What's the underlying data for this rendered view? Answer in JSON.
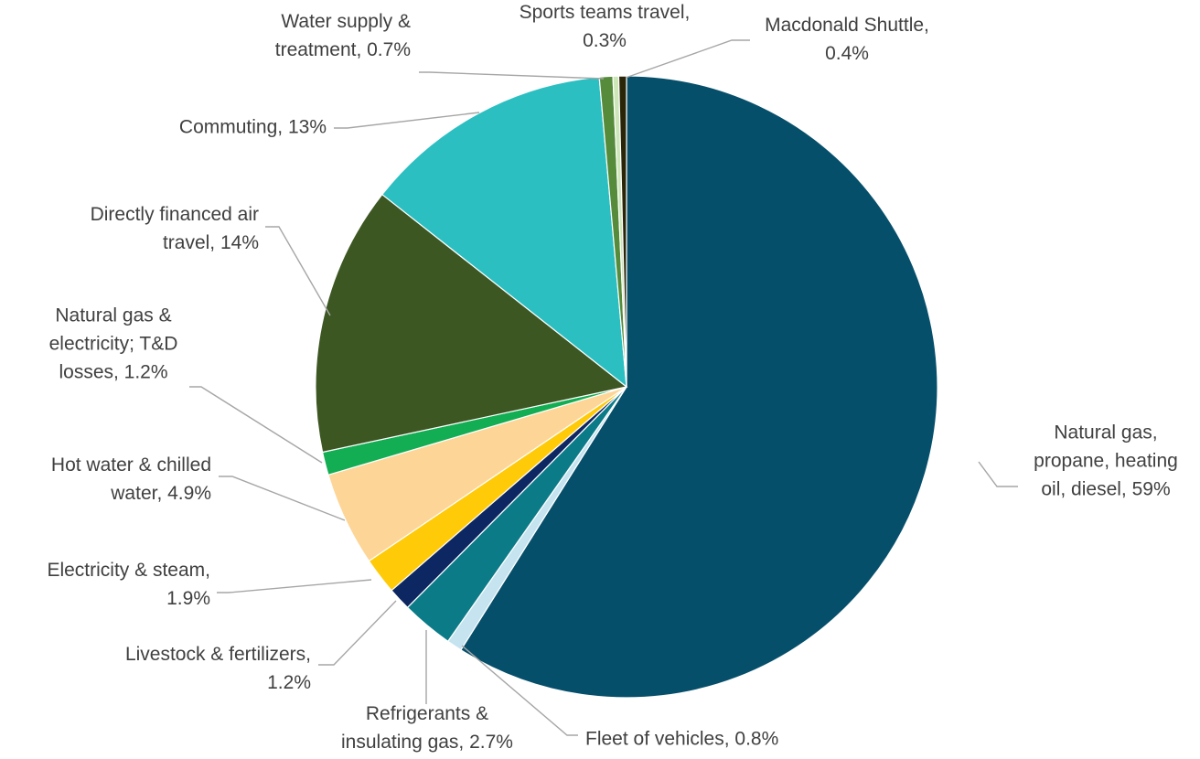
{
  "chart_data": {
    "type": "pie",
    "unit": "%",
    "slices": [
      {
        "label": "Natural gas, propane, heating oil, diesel",
        "display_lines": [
          "Natural gas,",
          "propane, heating",
          "oil, diesel, 59%"
        ],
        "value": 59,
        "color": "#064F6B"
      },
      {
        "label": "Fleet of vehicles",
        "display_lines": [
          "Fleet of vehicles, 0.8%"
        ],
        "value": 0.8,
        "color": "#C5E4EF"
      },
      {
        "label": "Refrigerants & insulating gas",
        "display_lines": [
          "Refrigerants &",
          "insulating gas, 2.7%"
        ],
        "value": 2.7,
        "color": "#0B7B88"
      },
      {
        "label": "Livestock & fertilizers",
        "display_lines": [
          "Livestock & fertilizers,",
          "1.2%"
        ],
        "value": 1.2,
        "color": "#0D2762"
      },
      {
        "label": "Electricity & steam",
        "display_lines": [
          "Electricity & steam,",
          "1.9%"
        ],
        "value": 1.9,
        "color": "#FFCA08"
      },
      {
        "label": "Hot water & chilled water",
        "display_lines": [
          "Hot water & chilled",
          "water, 4.9%"
        ],
        "value": 4.9,
        "color": "#FDD597"
      },
      {
        "label": "Natural gas & electricity; T&D losses",
        "display_lines": [
          "Natural gas &",
          "electricity; T&D",
          "losses, 1.2%"
        ],
        "value": 1.2,
        "color": "#13AE53"
      },
      {
        "label": "Directly financed air travel",
        "display_lines": [
          "Directly financed air",
          "travel, 14%"
        ],
        "value": 14,
        "color": "#3D5723"
      },
      {
        "label": "Commuting",
        "display_lines": [
          "Commuting, 13%"
        ],
        "value": 13,
        "color": "#2BBFC1"
      },
      {
        "label": "Water supply & treatment",
        "display_lines": [
          "Water supply &",
          "treatment, 0.7%"
        ],
        "value": 0.7,
        "color": "#558B3B"
      },
      {
        "label": "Sports teams travel",
        "display_lines": [
          "Sports teams travel,",
          "0.3%"
        ],
        "value": 0.3,
        "color": "#CCE6B8"
      },
      {
        "label": "Macdonald Shuttle",
        "display_lines": [
          "Macdonald Shuttle,",
          "0.4%"
        ],
        "value": 0.4,
        "color": "#2A2508"
      }
    ]
  }
}
